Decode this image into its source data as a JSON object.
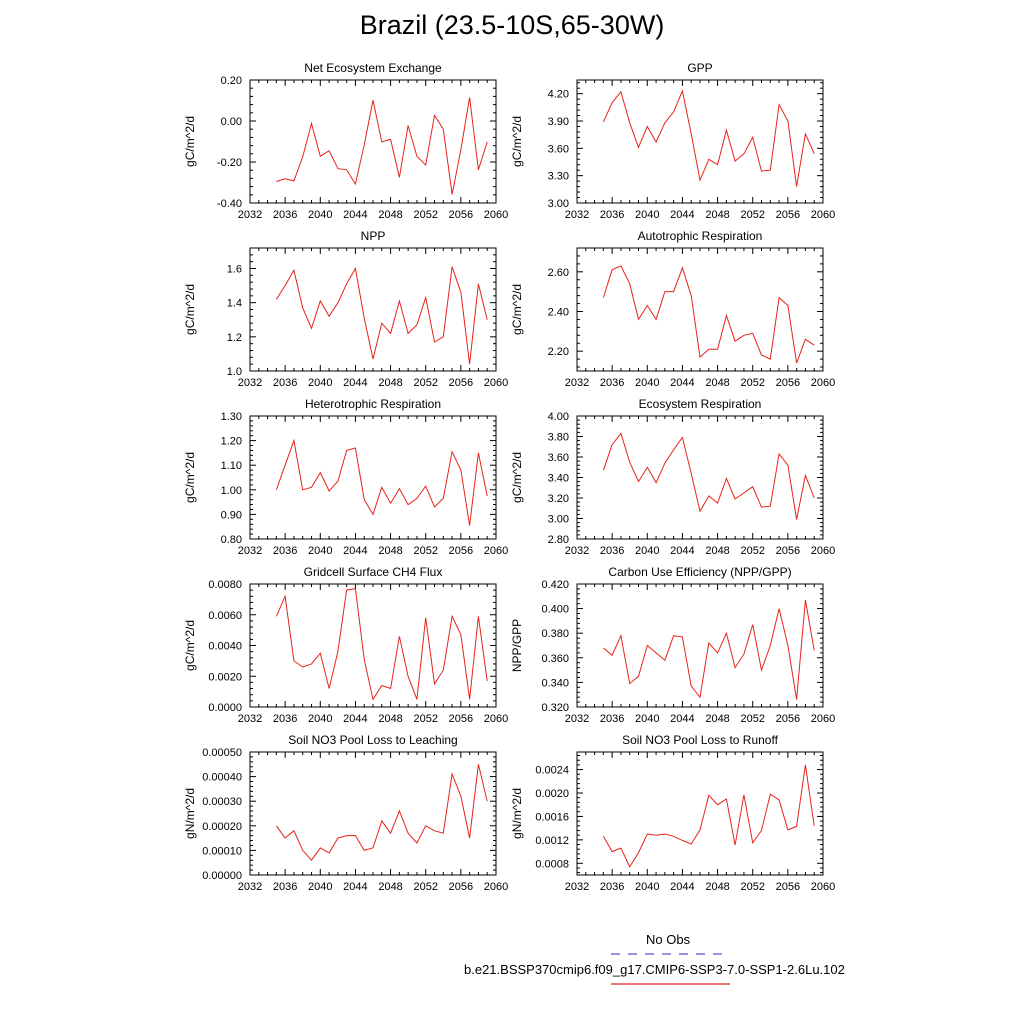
{
  "title": "Brazil (23.5-10S,65-30W)",
  "legend": {
    "obs_label": "No Obs",
    "model_label": "b.e21.BSSP370cmip6.f09_g17.CMIP6-SSP3-7.0-SSP1-2.6Lu.102",
    "obs_color": "#5555cc",
    "model_color": "#e8221a"
  },
  "colors": {
    "series": "#e8221a",
    "axis": "#000000"
  },
  "chart_data": [
    {
      "type": "line",
      "title": "Net Ecosystem Exchange",
      "ylabel": "gC/m^2/d",
      "xlim": [
        2032,
        2060
      ],
      "ylim": [
        -0.4,
        0.2
      ],
      "xticks": [
        "2032",
        "2036",
        "2040",
        "2044",
        "2048",
        "2052",
        "2056",
        "2060"
      ],
      "yticks": [
        "-0.40",
        "-0.20",
        "0.00",
        "0.20"
      ],
      "series": [
        {
          "x": [
            2035,
            2036,
            2037,
            2038,
            2039,
            2040,
            2041,
            2042,
            2043,
            2044,
            2045,
            2046,
            2047,
            2048,
            2049,
            2050,
            2051,
            2052,
            2053,
            2054,
            2055,
            2056,
            2057,
            2058,
            2059
          ],
          "values": [
            -0.295,
            -0.282,
            -0.292,
            -0.175,
            -0.012,
            -0.172,
            -0.145,
            -0.232,
            -0.238,
            -0.308,
            -0.118,
            0.102,
            -0.102,
            -0.09,
            -0.275,
            -0.022,
            -0.172,
            -0.215,
            0.028,
            -0.04,
            -0.358,
            -0.14,
            0.115,
            -0.238,
            -0.102
          ]
        }
      ]
    },
    {
      "type": "line",
      "title": "GPP",
      "ylabel": "gC/m^2/d",
      "xlim": [
        2032,
        2060
      ],
      "ylim": [
        3.0,
        4.35
      ],
      "xticks": [
        "2032",
        "2036",
        "2040",
        "2044",
        "2048",
        "2052",
        "2056",
        "2060"
      ],
      "yticks": [
        "3.00",
        "3.30",
        "3.60",
        "3.90",
        "4.20"
      ],
      "series": [
        {
          "x": [
            2035,
            2036,
            2037,
            2038,
            2039,
            2040,
            2041,
            2042,
            2043,
            2044,
            2045,
            2046,
            2047,
            2048,
            2049,
            2050,
            2051,
            2052,
            2053,
            2054,
            2055,
            2056,
            2057,
            2058,
            2059
          ],
          "values": [
            3.89,
            4.1,
            4.22,
            3.88,
            3.61,
            3.84,
            3.67,
            3.88,
            4.0,
            4.23,
            3.76,
            3.25,
            3.48,
            3.42,
            3.8,
            3.46,
            3.54,
            3.72,
            3.35,
            3.36,
            4.08,
            3.9,
            3.18,
            3.76,
            3.54
          ]
        }
      ]
    },
    {
      "type": "line",
      "title": "NPP",
      "ylabel": "gC/m^2/d",
      "xlim": [
        2032,
        2060
      ],
      "ylim": [
        1.0,
        1.72
      ],
      "xticks": [
        "2032",
        "2036",
        "2040",
        "2044",
        "2048",
        "2052",
        "2056",
        "2060"
      ],
      "yticks": [
        "1.0",
        "1.2",
        "1.4",
        "1.6"
      ],
      "series": [
        {
          "x": [
            2035,
            2036,
            2037,
            2038,
            2039,
            2040,
            2041,
            2042,
            2043,
            2044,
            2045,
            2046,
            2047,
            2048,
            2049,
            2050,
            2051,
            2052,
            2053,
            2054,
            2055,
            2056,
            2057,
            2058,
            2059
          ],
          "values": [
            1.42,
            1.5,
            1.59,
            1.37,
            1.25,
            1.41,
            1.32,
            1.4,
            1.51,
            1.6,
            1.31,
            1.07,
            1.28,
            1.22,
            1.41,
            1.22,
            1.27,
            1.43,
            1.17,
            1.2,
            1.61,
            1.46,
            1.04,
            1.51,
            1.3
          ]
        }
      ]
    },
    {
      "type": "line",
      "title": "Autotrophic Respiration",
      "ylabel": "gC/m^2/d",
      "xlim": [
        2032,
        2060
      ],
      "ylim": [
        2.1,
        2.72
      ],
      "xticks": [
        "2032",
        "2036",
        "2040",
        "2044",
        "2048",
        "2052",
        "2056",
        "2060"
      ],
      "yticks": [
        "2.20",
        "2.40",
        "2.60"
      ],
      "series": [
        {
          "x": [
            2035,
            2036,
            2037,
            2038,
            2039,
            2040,
            2041,
            2042,
            2043,
            2044,
            2045,
            2046,
            2047,
            2048,
            2049,
            2050,
            2051,
            2052,
            2053,
            2054,
            2055,
            2056,
            2057,
            2058,
            2059
          ],
          "values": [
            2.47,
            2.61,
            2.63,
            2.54,
            2.36,
            2.43,
            2.36,
            2.5,
            2.5,
            2.62,
            2.48,
            2.17,
            2.21,
            2.21,
            2.38,
            2.25,
            2.28,
            2.29,
            2.18,
            2.16,
            2.47,
            2.43,
            2.14,
            2.26,
            2.23
          ]
        }
      ]
    },
    {
      "type": "line",
      "title": "Heterotrophic Respiration",
      "ylabel": "gC/m^2/d",
      "xlim": [
        2032,
        2060
      ],
      "ylim": [
        0.8,
        1.3
      ],
      "xticks": [
        "2032",
        "2036",
        "2040",
        "2044",
        "2048",
        "2052",
        "2056",
        "2060"
      ],
      "yticks": [
        "0.80",
        "0.90",
        "1.00",
        "1.10",
        "1.20",
        "1.30"
      ],
      "series": [
        {
          "x": [
            2035,
            2036,
            2037,
            2038,
            2039,
            2040,
            2041,
            2042,
            2043,
            2044,
            2045,
            2046,
            2047,
            2048,
            2049,
            2050,
            2051,
            2052,
            2053,
            2054,
            2055,
            2056,
            2057,
            2058,
            2059
          ],
          "values": [
            1.0,
            1.1,
            1.2,
            1.0,
            1.01,
            1.07,
            0.995,
            1.035,
            1.16,
            1.17,
            0.96,
            0.9,
            1.01,
            0.945,
            1.005,
            0.94,
            0.965,
            1.015,
            0.93,
            0.965,
            1.155,
            1.08,
            0.855,
            1.15,
            0.975
          ]
        }
      ]
    },
    {
      "type": "line",
      "title": "Ecosystem Respiration",
      "ylabel": "gC/m^2/d",
      "xlim": [
        2032,
        2060
      ],
      "ylim": [
        2.8,
        4.0
      ],
      "xticks": [
        "2032",
        "2036",
        "2040",
        "2044",
        "2048",
        "2052",
        "2056",
        "2060"
      ],
      "yticks": [
        "2.80",
        "3.00",
        "3.20",
        "3.40",
        "3.60",
        "3.80",
        "4.00"
      ],
      "series": [
        {
          "x": [
            2035,
            2036,
            2037,
            2038,
            2039,
            2040,
            2041,
            2042,
            2043,
            2044,
            2045,
            2046,
            2047,
            2048,
            2049,
            2050,
            2051,
            2052,
            2053,
            2054,
            2055,
            2056,
            2057,
            2058,
            2059
          ],
          "values": [
            3.47,
            3.72,
            3.83,
            3.55,
            3.36,
            3.5,
            3.35,
            3.54,
            3.67,
            3.79,
            3.44,
            3.07,
            3.22,
            3.15,
            3.39,
            3.19,
            3.25,
            3.31,
            3.11,
            3.12,
            3.63,
            3.52,
            2.99,
            3.42,
            3.2
          ]
        }
      ]
    },
    {
      "type": "line",
      "title": "Gridcell Surface CH4 Flux",
      "ylabel": "gC/m^2/d",
      "xlim": [
        2032,
        2060
      ],
      "ylim": [
        0.0,
        0.008
      ],
      "xticks": [
        "2032",
        "2036",
        "2040",
        "2044",
        "2048",
        "2052",
        "2056",
        "2060"
      ],
      "yticks": [
        "0.0000",
        "0.0020",
        "0.0040",
        "0.0060",
        "0.0080"
      ],
      "series": [
        {
          "x": [
            2035,
            2036,
            2037,
            2038,
            2039,
            2040,
            2041,
            2042,
            2043,
            2044,
            2045,
            2046,
            2047,
            2048,
            2049,
            2050,
            2051,
            2052,
            2053,
            2054,
            2055,
            2056,
            2057,
            2058,
            2059
          ],
          "values": [
            0.0059,
            0.0072,
            0.003,
            0.0026,
            0.0028,
            0.0035,
            0.0012,
            0.0036,
            0.0076,
            0.0077,
            0.0031,
            0.0005,
            0.0014,
            0.0012,
            0.0046,
            0.002,
            0.0005,
            0.0058,
            0.0015,
            0.0024,
            0.0059,
            0.0047,
            0.0005,
            0.0059,
            0.0017
          ]
        }
      ]
    },
    {
      "type": "line",
      "title": "Carbon Use Efficiency (NPP/GPP)",
      "ylabel": "NPP/GPP",
      "xlim": [
        2032,
        2060
      ],
      "ylim": [
        0.32,
        0.42
      ],
      "xticks": [
        "2032",
        "2036",
        "2040",
        "2044",
        "2048",
        "2052",
        "2056",
        "2060"
      ],
      "yticks": [
        "0.320",
        "0.340",
        "0.360",
        "0.380",
        "0.400",
        "0.420"
      ],
      "series": [
        {
          "x": [
            2035,
            2036,
            2037,
            2038,
            2039,
            2040,
            2041,
            2042,
            2043,
            2044,
            2045,
            2046,
            2047,
            2048,
            2049,
            2050,
            2051,
            2052,
            2053,
            2054,
            2055,
            2056,
            2057,
            2058,
            2059
          ],
          "values": [
            0.368,
            0.362,
            0.378,
            0.339,
            0.345,
            0.37,
            0.364,
            0.358,
            0.378,
            0.377,
            0.337,
            0.328,
            0.372,
            0.364,
            0.38,
            0.352,
            0.363,
            0.387,
            0.35,
            0.37,
            0.4,
            0.37,
            0.326,
            0.407,
            0.366
          ]
        }
      ]
    },
    {
      "type": "line",
      "title": "Soil NO3 Pool Loss to Leaching",
      "ylabel": "gN/m^2/d",
      "xlim": [
        2032,
        2060
      ],
      "ylim": [
        0.0,
        0.0005
      ],
      "xticks": [
        "2032",
        "2036",
        "2040",
        "2044",
        "2048",
        "2052",
        "2056",
        "2060"
      ],
      "yticks": [
        "0.00000",
        "0.00010",
        "0.00020",
        "0.00030",
        "0.00040",
        "0.00050"
      ],
      "series": [
        {
          "x": [
            2035,
            2036,
            2037,
            2038,
            2039,
            2040,
            2041,
            2042,
            2043,
            2044,
            2045,
            2046,
            2047,
            2048,
            2049,
            2050,
            2051,
            2052,
            2053,
            2054,
            2055,
            2056,
            2057,
            2058,
            2059
          ],
          "values": [
            0.0002,
            0.00015,
            0.00018,
            0.0001,
            6e-05,
            0.00011,
            9e-05,
            0.00015,
            0.00016,
            0.00016,
            0.0001,
            0.00011,
            0.00022,
            0.00017,
            0.00026,
            0.00017,
            0.00013,
            0.0002,
            0.00018,
            0.00017,
            0.00041,
            0.00032,
            0.00015,
            0.00045,
            0.0003
          ]
        }
      ]
    },
    {
      "type": "line",
      "title": "Soil NO3 Pool Loss to Runoff",
      "ylabel": "gN/m^2/d",
      "xlim": [
        2032,
        2060
      ],
      "ylim": [
        0.0006,
        0.0027
      ],
      "xticks": [
        "2032",
        "2036",
        "2040",
        "2044",
        "2048",
        "2052",
        "2056",
        "2060"
      ],
      "yticks": [
        "0.0008",
        "0.0012",
        "0.0016",
        "0.0020",
        "0.0024"
      ],
      "series": [
        {
          "x": [
            2035,
            2036,
            2037,
            2038,
            2039,
            2040,
            2041,
            2042,
            2043,
            2044,
            2045,
            2046,
            2047,
            2048,
            2049,
            2050,
            2051,
            2052,
            2053,
            2054,
            2055,
            2056,
            2057,
            2058,
            2059
          ],
          "values": [
            0.00126,
            0.001,
            0.00106,
            0.00074,
            0.00098,
            0.0013,
            0.00128,
            0.0013,
            0.00126,
            0.00119,
            0.00113,
            0.00137,
            0.00196,
            0.0018,
            0.0019,
            0.00111,
            0.00197,
            0.00115,
            0.00136,
            0.00198,
            0.00188,
            0.00137,
            0.00143,
            0.00248,
            0.00144
          ]
        }
      ]
    }
  ]
}
